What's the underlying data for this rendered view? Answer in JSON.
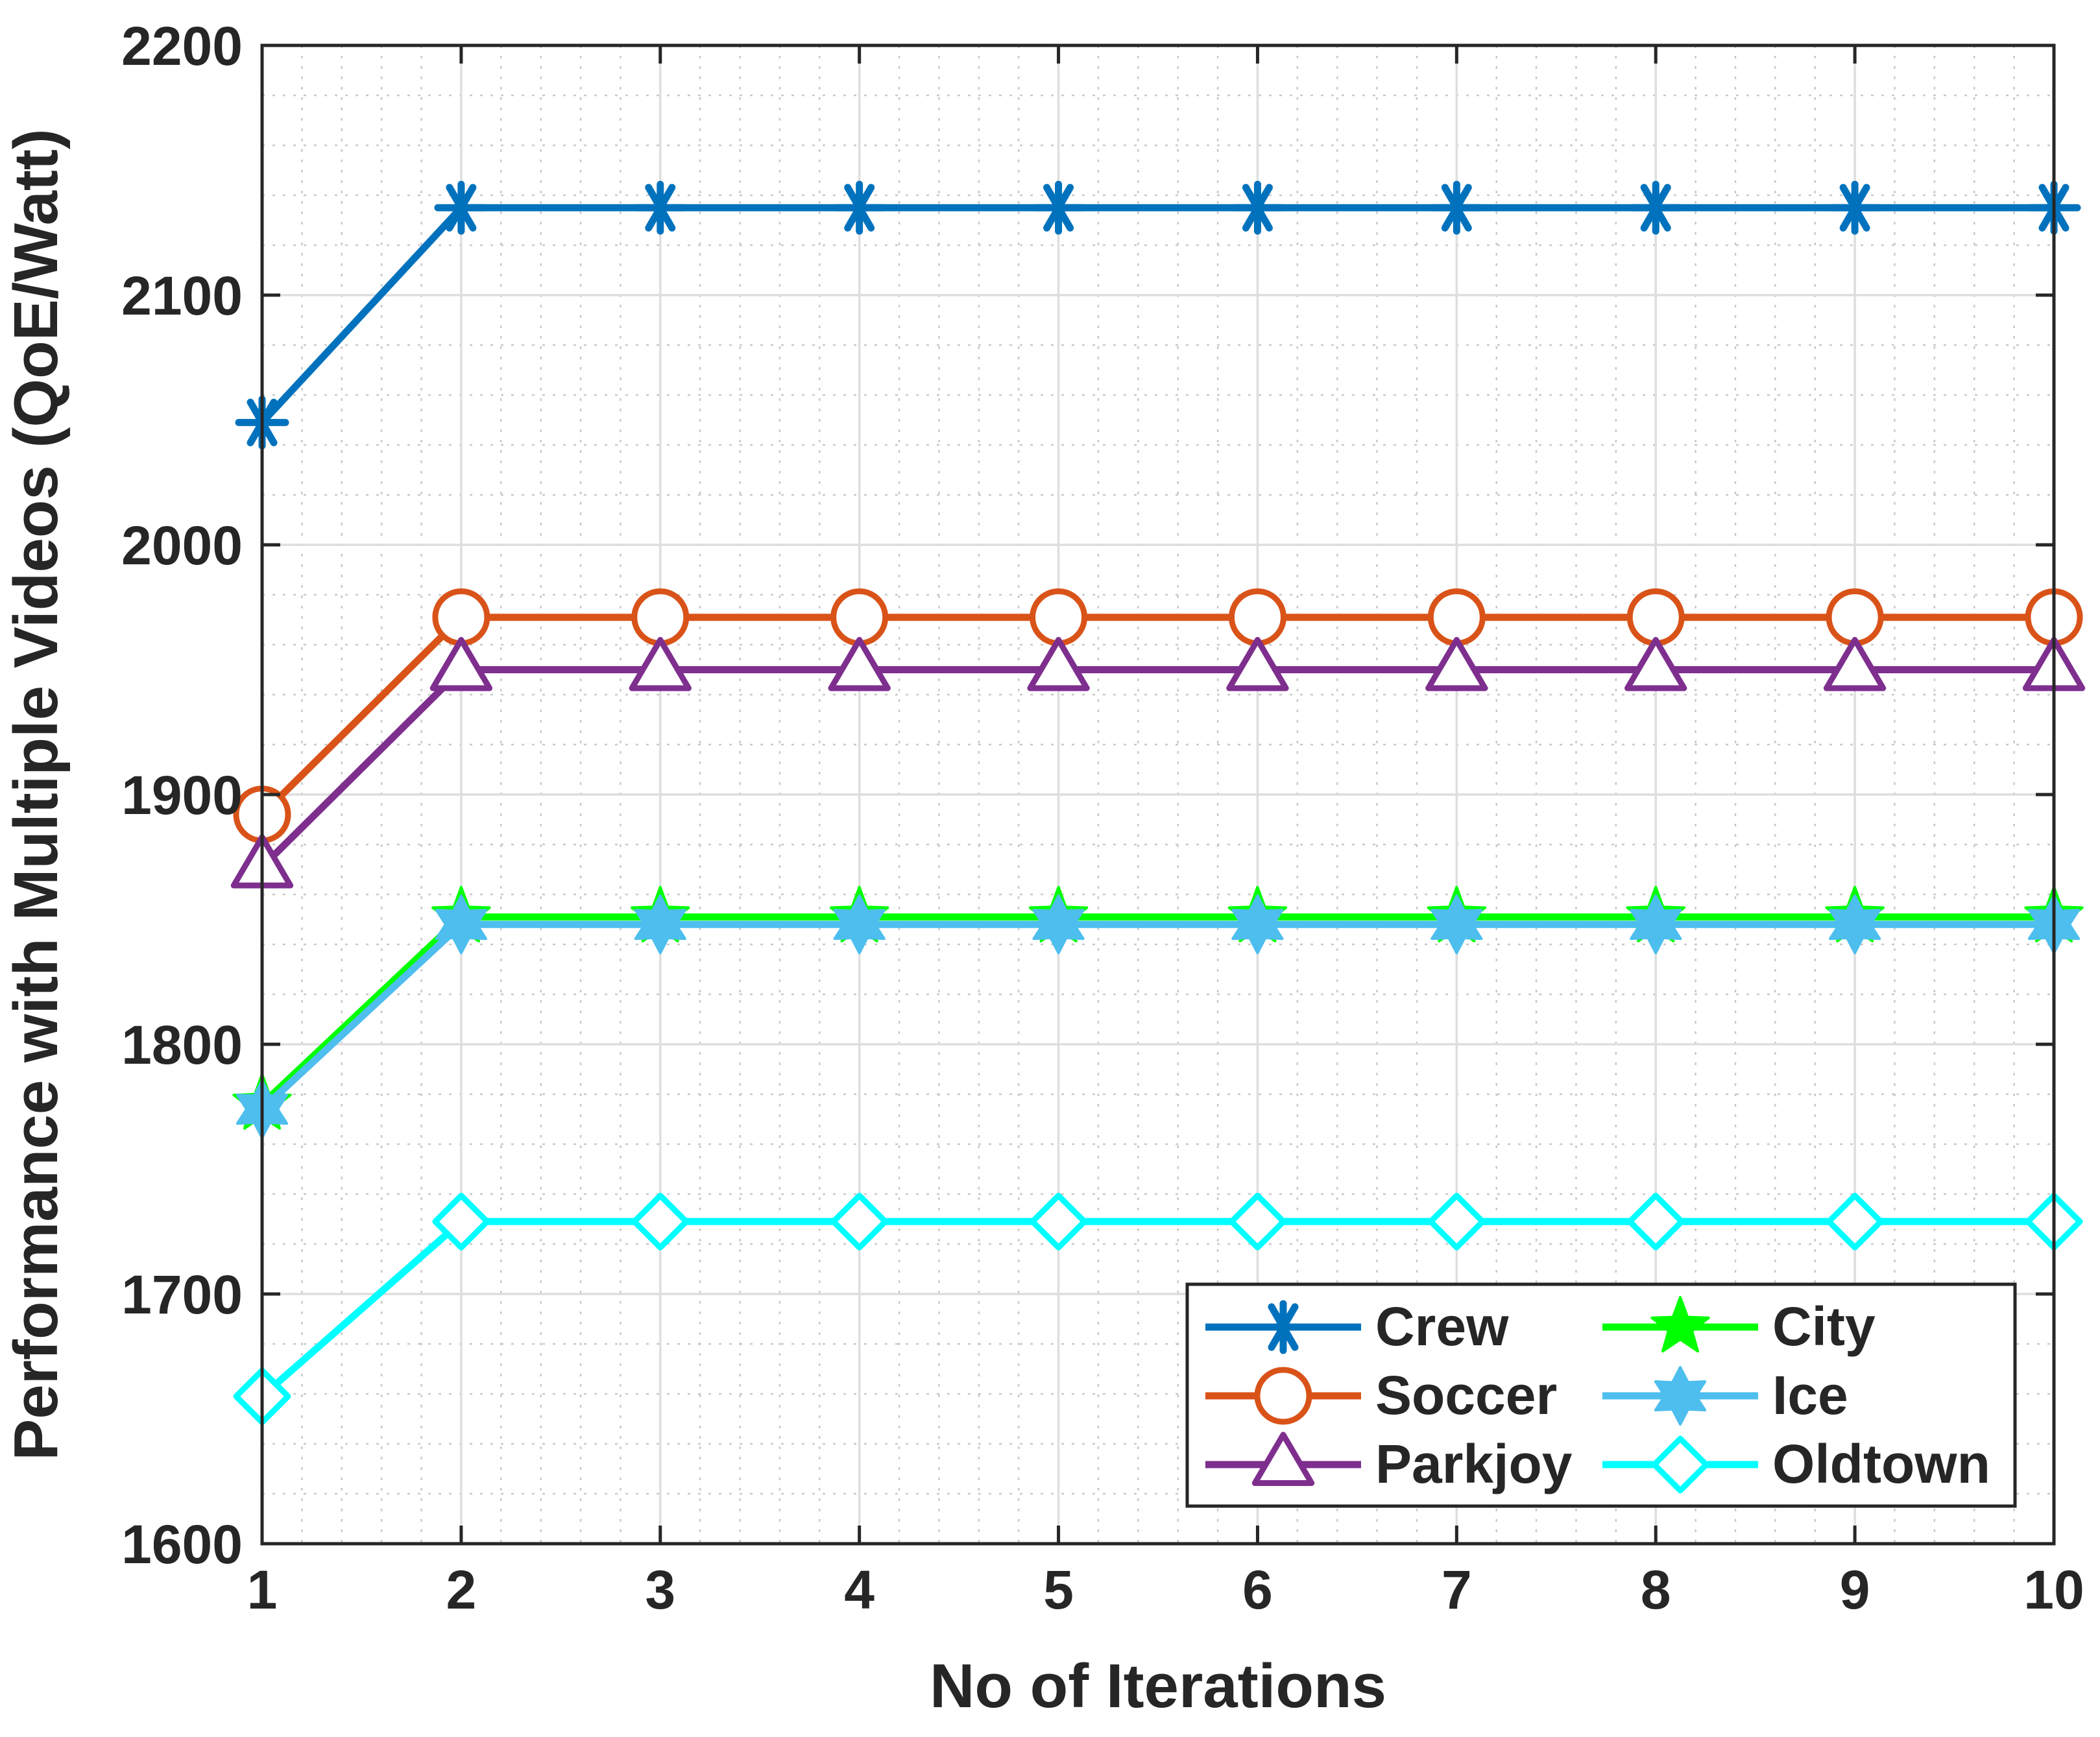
{
  "chart_data": {
    "type": "line",
    "title": "",
    "xlabel": "No of Iterations",
    "ylabel": "Performance with Multiple Videos (QoE/Watt)",
    "xlim": [
      1,
      10
    ],
    "ylim": [
      1600,
      2200
    ],
    "x": [
      1,
      2,
      3,
      4,
      5,
      6,
      7,
      8,
      9,
      10
    ],
    "x_ticks": [
      1,
      2,
      3,
      4,
      5,
      6,
      7,
      8,
      9,
      10
    ],
    "y_ticks": [
      1600,
      1700,
      1800,
      1900,
      2000,
      2100,
      2200
    ],
    "grid": true,
    "minor_grid": true,
    "legend_position": "bottom-right",
    "legend_columns": 2,
    "series": [
      {
        "name": "Crew",
        "color": "#0072BD",
        "marker": "asterisk",
        "values": [
          2049,
          2135,
          2135,
          2135,
          2135,
          2135,
          2135,
          2135,
          2135,
          2135
        ]
      },
      {
        "name": "Soccer",
        "color": "#D95319",
        "marker": "circle",
        "values": [
          1892,
          1971,
          1971,
          1971,
          1971,
          1971,
          1971,
          1971,
          1971,
          1971
        ]
      },
      {
        "name": "Parkjoy",
        "color": "#7E2F8E",
        "marker": "triangle",
        "values": [
          1871,
          1950,
          1950,
          1950,
          1950,
          1950,
          1950,
          1950,
          1950,
          1950
        ]
      },
      {
        "name": "City",
        "color": "#00FF00",
        "marker": "pentagram",
        "values": [
          1776,
          1851,
          1851,
          1851,
          1851,
          1851,
          1851,
          1851,
          1851,
          1851
        ]
      },
      {
        "name": "Ice",
        "color": "#4DBEEE",
        "marker": "hexagram",
        "values": [
          1774,
          1848,
          1848,
          1848,
          1848,
          1848,
          1848,
          1848,
          1848,
          1848
        ]
      },
      {
        "name": "Oldtown",
        "color": "#00FFFF",
        "marker": "diamond",
        "values": [
          1659,
          1729,
          1729,
          1729,
          1729,
          1729,
          1729,
          1729,
          1729,
          1729
        ]
      }
    ]
  }
}
